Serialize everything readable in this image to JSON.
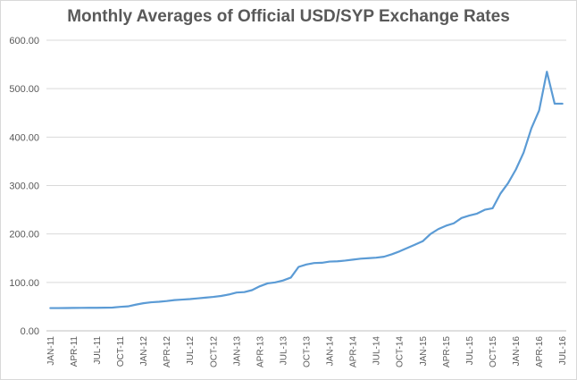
{
  "chart_data": {
    "type": "line",
    "title": "Monthly Averages of Official USD/SYP Exchange Rates",
    "xlabel": "",
    "ylabel": "",
    "ylim": [
      0,
      600
    ],
    "yticks": [
      "0.00",
      "100.00",
      "200.00",
      "300.00",
      "400.00",
      "500.00",
      "600.00"
    ],
    "grid": true,
    "legend": "none",
    "line_color": "#5b9bd5",
    "grid_color": "#d9d9d9",
    "categories": [
      "JAN-11",
      "FEB-11",
      "MAR-11",
      "APR-11",
      "MAY-11",
      "JUN-11",
      "JUL-11",
      "AUG-11",
      "SEP-11",
      "OCT-11",
      "NOV-11",
      "DEC-11",
      "JAN-12",
      "FEB-12",
      "MAR-12",
      "APR-12",
      "MAY-12",
      "JUN-12",
      "JUL-12",
      "AUG-12",
      "SEP-12",
      "OCT-12",
      "NOV-12",
      "DEC-12",
      "JAN-13",
      "FEB-13",
      "MAR-13",
      "APR-13",
      "MAY-13",
      "JUN-13",
      "JUL-13",
      "AUG-13",
      "SEP-13",
      "OCT-13",
      "NOV-13",
      "DEC-13",
      "JAN-14",
      "FEB-14",
      "MAR-14",
      "APR-14",
      "MAY-14",
      "JUN-14",
      "JUL-14",
      "AUG-14",
      "SEP-14",
      "OCT-14",
      "NOV-14",
      "DEC-14",
      "JAN-15",
      "FEB-15",
      "MAR-15",
      "APR-15",
      "MAY-15",
      "JUN-15",
      "JUL-15",
      "AUG-15",
      "SEP-15",
      "OCT-15",
      "NOV-15",
      "DEC-15",
      "JAN-16",
      "FEB-16",
      "MAR-16",
      "APR-16",
      "MAY-16",
      "JUN-16",
      "JUL-16"
    ],
    "tick_labels": [
      "JAN-11",
      "APR-11",
      "JUL-11",
      "OCT-11",
      "JAN-12",
      "APR-12",
      "JUL-12",
      "OCT-12",
      "JAN-13",
      "APR-13",
      "JUL-13",
      "OCT-13",
      "JAN-14",
      "APR-14",
      "JUL-14",
      "OCT-14",
      "JAN-15",
      "APR-15",
      "JUL-15",
      "OCT-15",
      "JAN-16",
      "APR-16",
      "JUL-16"
    ],
    "values": [
      47.0,
      47.0,
      47.1,
      47.3,
      47.4,
      47.5,
      47.6,
      47.8,
      48.0,
      49.5,
      50.5,
      54.0,
      57.0,
      59.0,
      60.0,
      61.5,
      63.5,
      64.5,
      65.5,
      67.0,
      68.5,
      70.0,
      72.0,
      75.0,
      79.0,
      80.0,
      84.0,
      92.0,
      98.0,
      100.0,
      104.0,
      110.0,
      132.0,
      137.0,
      140.0,
      140.5,
      143.0,
      143.5,
      145.0,
      147.0,
      149.0,
      150.0,
      151.0,
      153.0,
      158.0,
      164.0,
      171.0,
      178.0,
      185.0,
      200.0,
      210.0,
      217.0,
      222.0,
      233.0,
      238.0,
      242.0,
      250.0,
      253.0,
      283.0,
      305.0,
      333.0,
      368.0,
      418.0,
      455.0,
      535.0,
      469.0,
      469.0
    ]
  }
}
